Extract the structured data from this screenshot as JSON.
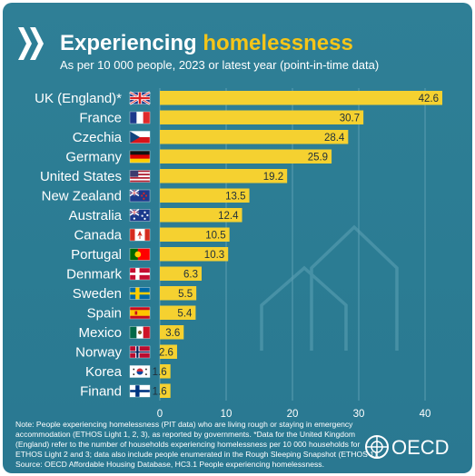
{
  "header": {
    "title_part1": "Experiencing ",
    "title_part2": "homelessness",
    "subtitle": "As per 10 000 people, 2023 or latest year (point-in-time data)"
  },
  "chart_data": {
    "type": "bar",
    "orientation": "horizontal",
    "categories": [
      "UK (England)*",
      "France",
      "Czechia",
      "Germany",
      "United States",
      "New Zealand",
      "Australia",
      "Canada",
      "Portugal",
      "Denmark",
      "Sweden",
      "Spain",
      "Mexico",
      "Norway",
      "Korea",
      "Finand"
    ],
    "flags": [
      "uk",
      "france",
      "czechia",
      "germany",
      "usa",
      "new-zealand",
      "australia",
      "canada",
      "portugal",
      "denmark",
      "sweden",
      "spain",
      "mexico",
      "norway",
      "korea",
      "finland"
    ],
    "values": [
      42.6,
      30.7,
      28.4,
      25.9,
      19.2,
      13.5,
      12.4,
      10.5,
      10.3,
      6.3,
      5.5,
      5.4,
      3.6,
      2.6,
      1.6,
      1.6
    ],
    "value_labels": [
      "42.6",
      "30.7",
      "28.4",
      "25.9",
      "19.2",
      "13.5",
      "12.4",
      "10.5",
      "10.3",
      "6.3",
      "5.5",
      "5.4",
      "3.6",
      "2.6",
      "1.6",
      "1.6"
    ],
    "xticks": [
      0,
      10,
      20,
      30,
      40
    ],
    "xtick_labels": [
      "0",
      "10",
      "20",
      "30",
      "40"
    ],
    "xlim": [
      0,
      42.6
    ],
    "grid": true,
    "bar_color": "#f5d130",
    "background_color": "#2c7c93",
    "accent_color": "#f5c518"
  },
  "footer": {
    "note_lines": [
      "Note: People experiencing homelessness (PIT data) who are living rough or staying in emergency",
      "accommodation (ETHOS Light 1, 2, 3), as reported by governments. *Data for the United Kingdom",
      "(England) refer to the number of households experiencing homelessness per 10 000 households for",
      "ETHOS Light 2 and 3; data also include people enumerated in the Rough Sleeping Snapshot (ETHOS 1).",
      "Source: OECD Affordable Housing Database, HC3.1 People experiencing homelessness."
    ],
    "logo_text": "OECD"
  }
}
